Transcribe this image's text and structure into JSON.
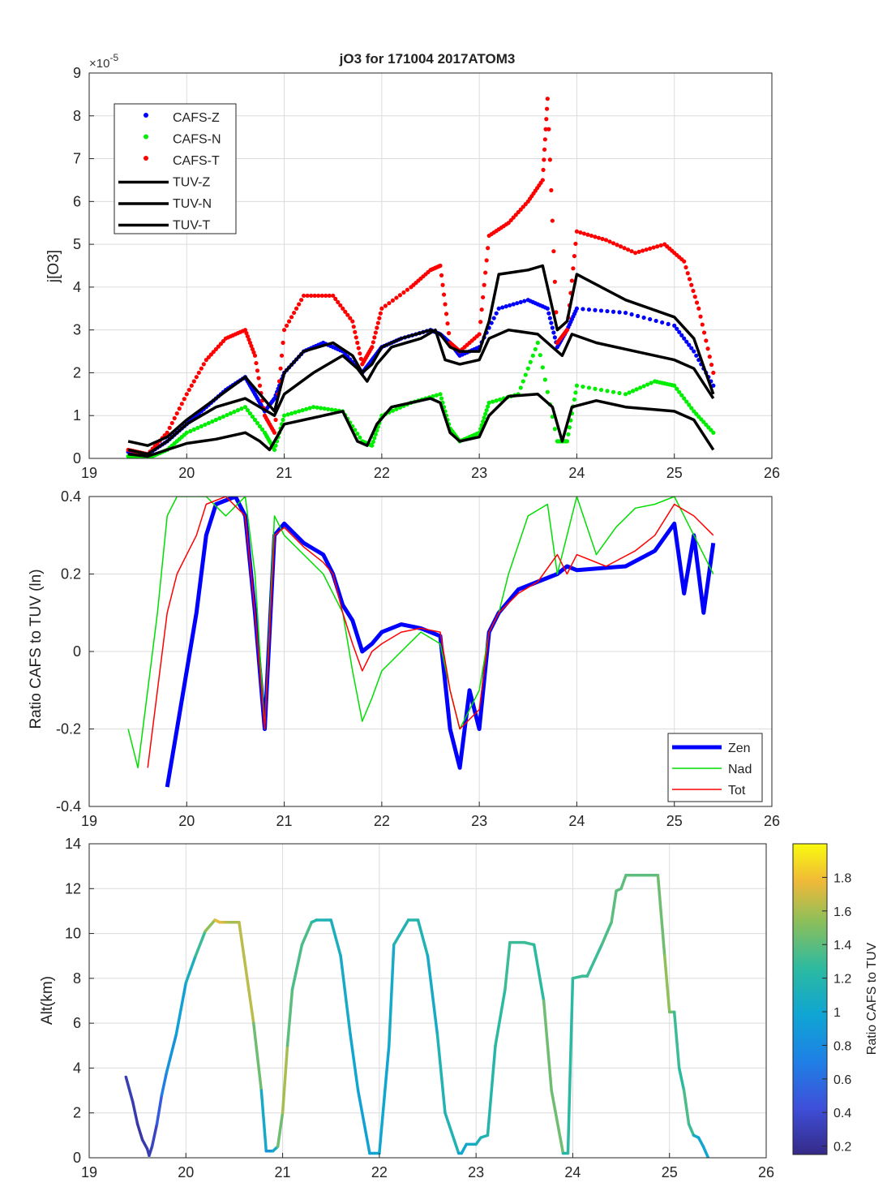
{
  "chart_data": [
    {
      "type": "scatter",
      "title": "jO3 for 171004 2017ATOM3",
      "xlabel": "",
      "ylabel": "j[O3]",
      "exponent_base": "×10",
      "exponent_power": "-5",
      "xlim": [
        19,
        26
      ],
      "ylim": [
        0,
        9
      ],
      "xticks": [
        "19",
        "20",
        "21",
        "22",
        "23",
        "24",
        "25",
        "26"
      ],
      "yticks": [
        "0",
        "1",
        "2",
        "3",
        "4",
        "5",
        "6",
        "7",
        "8",
        "9"
      ],
      "grid": true,
      "legend_position": "top-left",
      "series": [
        {
          "name": "CAFS-Z",
          "kind": "dots",
          "color": "#0000ff",
          "x": [
            19.4,
            19.6,
            19.8,
            20.0,
            20.2,
            20.4,
            20.6,
            20.7,
            20.8,
            20.9,
            21.0,
            21.2,
            21.4,
            21.6,
            21.8,
            21.9,
            22.0,
            22.2,
            22.5,
            22.6,
            22.7,
            22.8,
            23.0,
            23.2,
            23.5,
            23.7,
            23.8,
            23.9,
            24.0,
            24.5,
            25.0,
            25.2,
            25.4
          ],
          "y": [
            0.15,
            0.1,
            0.4,
            0.8,
            1.2,
            1.6,
            1.9,
            1.5,
            1.1,
            1.4,
            2.0,
            2.5,
            2.7,
            2.5,
            2.0,
            2.3,
            2.6,
            2.8,
            3.0,
            2.9,
            2.7,
            2.4,
            2.6,
            3.5,
            3.7,
            3.5,
            2.6,
            3.0,
            3.5,
            3.4,
            3.1,
            2.5,
            1.7
          ]
        },
        {
          "name": "CAFS-N",
          "kind": "dots",
          "color": "#00ee00",
          "x": [
            19.4,
            19.6,
            19.8,
            20.0,
            20.3,
            20.6,
            20.8,
            20.9,
            21.0,
            21.3,
            21.6,
            21.8,
            21.9,
            22.0,
            22.3,
            22.6,
            22.7,
            22.8,
            23.0,
            23.1,
            23.4,
            23.6,
            23.8,
            23.9,
            24.0,
            24.5,
            24.8,
            25.0,
            25.2,
            25.4
          ],
          "y": [
            0.05,
            0.0,
            0.2,
            0.6,
            0.9,
            1.2,
            0.6,
            0.2,
            1.0,
            1.2,
            1.1,
            0.4,
            0.3,
            1.0,
            1.3,
            1.5,
            0.7,
            0.4,
            0.6,
            1.3,
            1.5,
            2.7,
            0.4,
            0.4,
            1.7,
            1.5,
            1.8,
            1.7,
            1.1,
            0.6
          ]
        },
        {
          "name": "CAFS-T",
          "kind": "dots",
          "color": "#ff0000",
          "x": [
            19.4,
            19.6,
            19.8,
            20.0,
            20.2,
            20.4,
            20.6,
            20.7,
            20.8,
            20.9,
            21.0,
            21.2,
            21.5,
            21.7,
            21.8,
            21.9,
            22.0,
            22.3,
            22.5,
            22.6,
            22.7,
            22.8,
            23.0,
            23.1,
            23.3,
            23.5,
            23.65,
            23.7,
            23.8,
            23.9,
            24.0,
            24.3,
            24.6,
            24.9,
            25.1,
            25.25,
            25.4
          ],
          "y": [
            0.2,
            0.1,
            0.6,
            1.5,
            2.3,
            2.8,
            3.0,
            2.4,
            1.0,
            0.6,
            3.0,
            3.8,
            3.8,
            3.2,
            2.2,
            2.6,
            3.5,
            4.0,
            4.4,
            4.5,
            2.7,
            2.5,
            2.9,
            5.2,
            5.5,
            6.0,
            6.5,
            8.4,
            2.7,
            3.0,
            5.3,
            5.1,
            4.8,
            5.0,
            4.6,
            3.5,
            2.0
          ]
        },
        {
          "name": "TUV-Z",
          "kind": "line",
          "color": "#000000",
          "x": [
            19.4,
            19.6,
            19.8,
            20.0,
            20.3,
            20.6,
            20.75,
            20.9,
            21.0,
            21.2,
            21.5,
            21.7,
            21.8,
            21.9,
            22.0,
            22.2,
            22.5,
            22.6,
            22.7,
            22.8,
            23.0,
            23.1,
            23.2,
            23.5,
            23.65,
            23.8,
            23.9,
            24.0,
            24.5,
            25.0,
            25.2,
            25.4
          ],
          "y": [
            0.4,
            0.3,
            0.5,
            0.9,
            1.4,
            1.9,
            1.5,
            1.1,
            2.0,
            2.5,
            2.7,
            2.4,
            2.0,
            2.2,
            2.6,
            2.8,
            3.0,
            2.9,
            2.6,
            2.5,
            2.5,
            3.2,
            4.3,
            4.4,
            4.5,
            3.0,
            3.2,
            4.3,
            3.7,
            3.3,
            2.8,
            1.5
          ]
        },
        {
          "name": "TUV-N",
          "kind": "line",
          "color": "#000000",
          "x": [
            19.4,
            19.6,
            19.8,
            20.0,
            20.3,
            20.6,
            20.75,
            20.85,
            21.0,
            21.3,
            21.6,
            21.75,
            21.85,
            21.95,
            22.1,
            22.5,
            22.6,
            22.7,
            22.8,
            23.0,
            23.1,
            23.3,
            23.6,
            23.75,
            23.85,
            23.95,
            24.2,
            24.5,
            25.0,
            25.2,
            25.4
          ],
          "y": [
            0.1,
            0.05,
            0.2,
            0.35,
            0.45,
            0.6,
            0.4,
            0.2,
            0.8,
            0.95,
            1.1,
            0.4,
            0.3,
            0.8,
            1.2,
            1.4,
            1.3,
            0.6,
            0.4,
            0.5,
            1.0,
            1.45,
            1.5,
            1.2,
            0.4,
            1.2,
            1.35,
            1.2,
            1.1,
            0.9,
            0.2
          ]
        },
        {
          "name": "TUV-T",
          "kind": "line",
          "color": "#000000",
          "x": [
            19.4,
            19.6,
            19.8,
            20.0,
            20.3,
            20.6,
            20.75,
            20.9,
            21.0,
            21.3,
            21.6,
            21.75,
            21.85,
            21.95,
            22.1,
            22.4,
            22.55,
            22.65,
            22.8,
            23.0,
            23.1,
            23.3,
            23.6,
            23.75,
            23.85,
            23.95,
            24.2,
            24.6,
            25.0,
            25.2,
            25.4
          ],
          "y": [
            0.2,
            0.1,
            0.4,
            0.8,
            1.2,
            1.4,
            1.2,
            1.0,
            1.5,
            2.0,
            2.4,
            2.1,
            1.8,
            2.2,
            2.6,
            2.8,
            3.0,
            2.3,
            2.2,
            2.3,
            2.8,
            3.0,
            2.9,
            2.6,
            2.4,
            2.9,
            2.7,
            2.5,
            2.3,
            2.1,
            1.4
          ]
        }
      ]
    },
    {
      "type": "line",
      "title": "",
      "xlabel": "",
      "ylabel": "Ratio CAFS to TUV (ln)",
      "xlim": [
        19,
        26
      ],
      "ylim": [
        -0.4,
        0.4
      ],
      "xticks": [
        "19",
        "20",
        "21",
        "22",
        "23",
        "24",
        "25",
        "26"
      ],
      "yticks": [
        "-0.4",
        "-0.2",
        "0",
        "0.2",
        "0.4"
      ],
      "grid": true,
      "legend_position": "bottom-right",
      "series": [
        {
          "name": "Zen",
          "color": "#0000ff",
          "width": 5,
          "x": [
            19.8,
            19.9,
            20.0,
            20.1,
            20.2,
            20.3,
            20.5,
            20.6,
            20.7,
            20.8,
            20.9,
            21.0,
            21.2,
            21.4,
            21.5,
            21.6,
            21.7,
            21.8,
            21.9,
            22.0,
            22.2,
            22.4,
            22.6,
            22.7,
            22.8,
            22.9,
            23.0,
            23.1,
            23.2,
            23.4,
            23.6,
            23.8,
            23.9,
            24.0,
            24.5,
            24.8,
            25.0,
            25.1,
            25.2,
            25.3,
            25.4
          ],
          "y": [
            -0.35,
            -0.2,
            -0.05,
            0.1,
            0.3,
            0.38,
            0.4,
            0.35,
            0.1,
            -0.2,
            0.3,
            0.33,
            0.28,
            0.25,
            0.2,
            0.12,
            0.08,
            0.0,
            0.02,
            0.05,
            0.07,
            0.06,
            0.04,
            -0.2,
            -0.3,
            -0.1,
            -0.2,
            0.05,
            0.1,
            0.16,
            0.18,
            0.2,
            0.22,
            0.21,
            0.22,
            0.26,
            0.33,
            0.15,
            0.3,
            0.1,
            0.28
          ]
        },
        {
          "name": "Nad",
          "color": "#00dd00",
          "width": 1.5,
          "x": [
            19.4,
            19.5,
            19.6,
            19.7,
            19.8,
            19.9,
            20.0,
            20.2,
            20.4,
            20.6,
            20.7,
            20.8,
            20.9,
            21.0,
            21.2,
            21.4,
            21.6,
            21.7,
            21.8,
            21.9,
            22.0,
            22.2,
            22.4,
            22.6,
            22.7,
            22.8,
            23.0,
            23.1,
            23.2,
            23.3,
            23.5,
            23.7,
            23.8,
            23.9,
            24.0,
            24.2,
            24.4,
            24.6,
            24.8,
            25.0,
            25.2,
            25.4
          ],
          "y": [
            -0.2,
            -0.3,
            -0.1,
            0.1,
            0.35,
            0.4,
            0.4,
            0.4,
            0.35,
            0.4,
            0.2,
            -0.2,
            0.35,
            0.3,
            0.25,
            0.2,
            0.1,
            -0.05,
            -0.18,
            -0.12,
            -0.05,
            0.0,
            0.05,
            0.02,
            -0.1,
            -0.2,
            -0.1,
            0.05,
            0.1,
            0.2,
            0.35,
            0.38,
            0.2,
            0.3,
            0.4,
            0.25,
            0.32,
            0.37,
            0.38,
            0.4,
            0.3,
            0.2
          ]
        },
        {
          "name": "Tot",
          "color": "#ff0000",
          "width": 1.5,
          "x": [
            19.6,
            19.7,
            19.8,
            19.9,
            20.0,
            20.1,
            20.2,
            20.4,
            20.6,
            20.7,
            20.8,
            20.9,
            21.0,
            21.2,
            21.4,
            21.5,
            21.6,
            21.7,
            21.8,
            21.9,
            22.0,
            22.2,
            22.4,
            22.6,
            22.7,
            22.8,
            23.0,
            23.1,
            23.2,
            23.4,
            23.6,
            23.8,
            23.9,
            24.0,
            24.3,
            24.6,
            24.8,
            25.0,
            25.2,
            25.4
          ],
          "y": [
            -0.3,
            -0.1,
            0.1,
            0.2,
            0.25,
            0.3,
            0.38,
            0.4,
            0.35,
            0.1,
            -0.2,
            0.3,
            0.32,
            0.27,
            0.23,
            0.2,
            0.1,
            0.02,
            -0.05,
            0.0,
            0.02,
            0.05,
            0.06,
            0.05,
            -0.1,
            -0.2,
            -0.15,
            0.05,
            0.1,
            0.15,
            0.18,
            0.25,
            0.2,
            0.25,
            0.22,
            0.26,
            0.3,
            0.38,
            0.35,
            0.3
          ]
        }
      ]
    },
    {
      "type": "line",
      "title": "",
      "xlabel": "",
      "ylabel": "Alt(km)",
      "xlim": [
        19,
        26
      ],
      "ylim": [
        0,
        14
      ],
      "xticks": [
        "19",
        "20",
        "21",
        "22",
        "23",
        "24",
        "25",
        "26"
      ],
      "yticks": [
        "0",
        "2",
        "4",
        "6",
        "8",
        "10",
        "12",
        "14"
      ],
      "grid": true,
      "colorbar": {
        "label": "Ratio CAFS to TUV",
        "range": [
          0.15,
          2.0
        ],
        "ticks": [
          "0.2",
          "0.4",
          "0.6",
          "0.8",
          "1",
          "1.2",
          "1.4",
          "1.6",
          "1.8"
        ],
        "colormap": "parula"
      },
      "series": [
        {
          "name": "Alt",
          "x": [
            19.38,
            19.45,
            19.5,
            19.55,
            19.6,
            19.62,
            19.65,
            19.7,
            19.75,
            19.8,
            19.9,
            20.0,
            20.1,
            20.2,
            20.3,
            20.35,
            20.4,
            20.45,
            20.55,
            20.6,
            20.7,
            20.78,
            20.83,
            20.9,
            20.95,
            21.0,
            21.05,
            21.1,
            21.2,
            21.3,
            21.35,
            21.5,
            21.6,
            21.7,
            21.78,
            21.9,
            21.95,
            22.0,
            22.1,
            22.15,
            22.3,
            22.4,
            22.5,
            22.6,
            22.68,
            22.82,
            22.85,
            22.9,
            23.0,
            23.05,
            23.12,
            23.2,
            23.3,
            23.35,
            23.5,
            23.6,
            23.7,
            23.78,
            23.9,
            23.95,
            24.0,
            24.1,
            24.15,
            24.3,
            24.4,
            24.45,
            24.5,
            24.55,
            24.6,
            24.7,
            24.8,
            24.88,
            24.95,
            25.0,
            25.05,
            25.1,
            25.15,
            25.2,
            25.25,
            25.3,
            25.35,
            25.4
          ],
          "y": [
            3.6,
            2.5,
            1.5,
            0.8,
            0.4,
            0.1,
            0.5,
            1.5,
            2.8,
            3.8,
            5.5,
            7.8,
            9.0,
            10.1,
            10.6,
            10.5,
            10.5,
            10.5,
            10.5,
            9.0,
            6.0,
            3.0,
            0.3,
            0.3,
            0.5,
            2.0,
            5.0,
            7.5,
            9.5,
            10.5,
            10.6,
            10.6,
            9.0,
            5.5,
            3.0,
            0.2,
            0.2,
            0.2,
            5.0,
            9.5,
            10.6,
            10.6,
            9.0,
            5.5,
            2.0,
            0.2,
            0.2,
            0.6,
            0.6,
            0.9,
            1.0,
            5.0,
            7.5,
            9.6,
            9.6,
            9.5,
            7.0,
            3.0,
            0.2,
            0.2,
            8.0,
            8.1,
            8.1,
            9.5,
            10.5,
            11.9,
            12.0,
            12.6,
            12.6,
            12.6,
            12.6,
            12.6,
            9.0,
            6.5,
            6.5,
            4.0,
            3.0,
            1.5,
            1.0,
            0.9,
            0.5,
            0.0
          ],
          "ratio": [
            0.3,
            0.3,
            0.25,
            0.25,
            0.3,
            0.3,
            0.3,
            0.4,
            0.6,
            0.8,
            0.9,
            1.0,
            1.2,
            1.4,
            1.7,
            1.8,
            1.7,
            1.6,
            1.6,
            1.7,
            1.6,
            1.3,
            0.8,
            0.9,
            1.2,
            1.7,
            1.5,
            1.3,
            1.4,
            1.3,
            1.2,
            1.1,
            1.1,
            1.0,
            1.0,
            0.9,
            1.0,
            1.0,
            1.0,
            1.1,
            1.2,
            1.2,
            1.1,
            1.0,
            1.3,
            1.0,
            1.0,
            1.0,
            1.1,
            1.1,
            1.2,
            1.2,
            1.3,
            1.3,
            1.3,
            1.3,
            1.2,
            1.7,
            1.2,
            1.2,
            1.3,
            1.3,
            1.3,
            1.3,
            1.4,
            1.4,
            1.4,
            1.4,
            1.4,
            1.4,
            1.4,
            1.4,
            1.5,
            1.6,
            1.3,
            1.3,
            1.2,
            1.5,
            1.1,
            1.0,
            1.0,
            1.0
          ]
        }
      ]
    }
  ]
}
